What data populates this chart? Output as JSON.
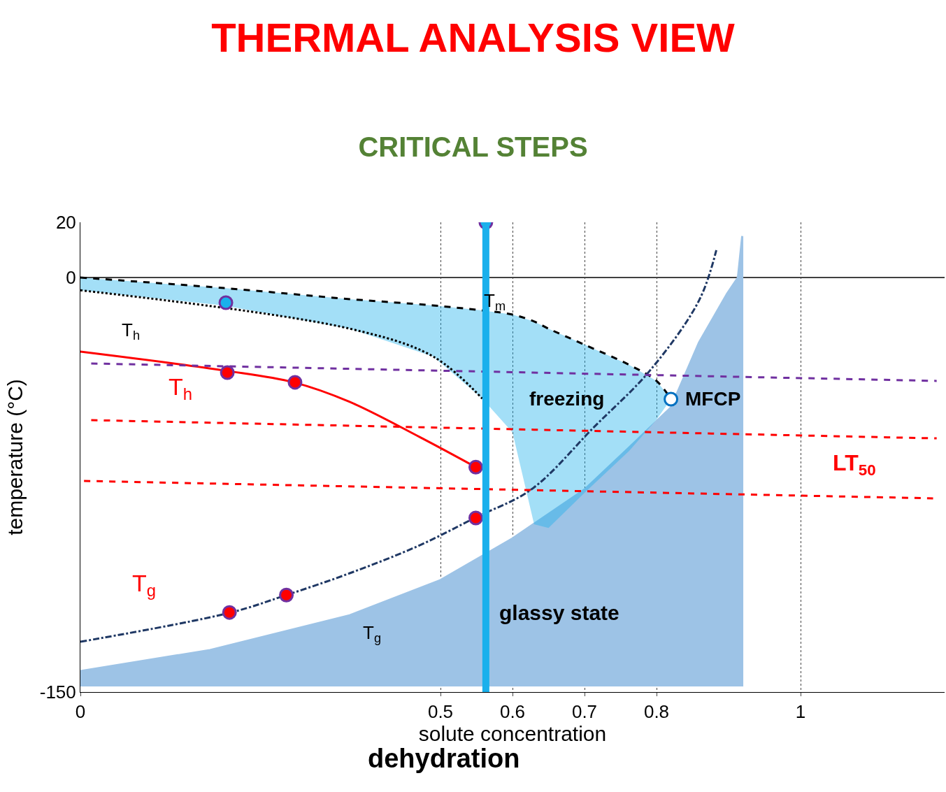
{
  "chart_data": {
    "type": "line",
    "title": "THERMAL ANALYSIS VIEW",
    "subtitle": "CRITICAL STEPS",
    "xlabel": "solute concentration",
    "ylabel": "temperature (°C)",
    "xlim": [
      0,
      1.2
    ],
    "xticks": [
      0,
      0.5,
      0.6,
      0.7,
      0.8,
      1
    ],
    "ylim": [
      -150,
      20
    ],
    "yticks": [
      -150,
      0,
      20
    ],
    "grid": "x",
    "series": [
      {
        "type": "area",
        "color": "#9dc3e6",
        "x": [
          0,
          0,
          0.18,
          0.374,
          0.5,
          0.6,
          0.7,
          0.762,
          0.82,
          0.859,
          0.898,
          0.913,
          0.919,
          0.919
        ],
        "values": [
          -148,
          -142.4,
          -134.8,
          -122.2,
          -109.5,
          -94.4,
          -76.7,
          -61.5,
          -47,
          -23.5,
          -5.8,
          0,
          15,
          -148
        ]
      },
      {
        "color": "#000000",
        "line_style": "dashed",
        "x": [
          0,
          0.199,
          0.374,
          0.49,
          0.558,
          0.6,
          0.63,
          0.65,
          0.7,
          0.762,
          0.8,
          0.82
        ],
        "values": [
          0,
          -3.8,
          -7.8,
          -10.1,
          -11.9,
          -13.4,
          -15.9,
          -18.5,
          -24.3,
          -31.6,
          -37.4,
          -44
        ],
        "upper": [
          0,
          -3.8,
          -7.8,
          -10.1,
          -11.9,
          -13.4,
          -15.9,
          -18.5,
          -24.3,
          -31.6,
          -37.4,
          -44
        ],
        "lower": [
          -4.6,
          -10.1,
          -18.5,
          -28.6,
          -43.8,
          -56,
          -89.3,
          -90.6,
          -77.9,
          -62.7,
          -51.4,
          -44
        ]
      },
      {
        "color": "#000000",
        "line_style": "dotted",
        "x": [
          0,
          0.199,
          0.374,
          0.49,
          0.558
        ],
        "values": [
          -4.6,
          null,
          -18.5,
          -28.6,
          -43.8
        ]
      },
      {
        "color": "#ff0000",
        "line_style": "solid",
        "x": [
          0,
          0.199,
          0.296,
          0.374,
          0.471,
          0.549
        ],
        "values": [
          -26.8,
          -33.6,
          -37.9,
          -45,
          -57.7,
          -68.6
        ]
      },
      {
        "color": "#1f3864",
        "line_style": "dashdot",
        "x": [
          0,
          0.209,
          0.286,
          0.374,
          0.471,
          0.549,
          0.626,
          0.714,
          0.791,
          0.859,
          0.883
        ],
        "values": [
          -131.8,
          -121.2,
          -114.9,
          -107,
          -96.9,
          -86.8,
          -76.7,
          -53.9,
          -33.6,
          -8.3,
          9.9
        ]
      },
      {
        "color": "#7030a0",
        "line_style": "dashed",
        "x": [
          0.015,
          1.189
        ],
        "values": [
          -31.1,
          -37.4
        ]
      },
      {
        "color": "#ff0000",
        "line_style": "dashed",
        "x": [
          0.015,
          1.189
        ],
        "values": [
          -51.6,
          -58.2
        ]
      },
      {
        "color": "#ff0000",
        "line_style": "dashed",
        "x": [
          0.005,
          1.184
        ],
        "values": [
          -73.6,
          -79.9
        ]
      },
      {
        "type": "scatter",
        "marker": "circle",
        "color": "#7030a0",
        "x": [
          0.204,
          0.298,
          0.549,
          0.549,
          0.286,
          0.207,
          0.202,
          0.563
        ],
        "values": [
          -34.4,
          -37.9,
          -68.6,
          -87,
          -114.9,
          -121.2,
          -9.1,
          20
        ],
        "colors": [
          "#ff0000",
          "#ff0000",
          "#ff0000",
          "#ff0000",
          "#ff0000",
          "#ff0000",
          "#1ab0ec",
          "#1ab0ec"
        ]
      },
      {
        "type": "scatter",
        "marker": "circle",
        "color": "#0070c0",
        "x": [
          0.82
        ],
        "values": [
          -44
        ],
        "colors": [
          "#ffffff"
        ]
      }
    ],
    "ref_lines": [
      {
        "axis": "y",
        "value": 0,
        "color": "#000000",
        "line_style": "solid"
      },
      {
        "axis": "x",
        "value": 0.563,
        "color": "#1ab0ec",
        "line_style": "solid"
      }
    ],
    "annotations": [
      "T$_{m}$",
      "T$_{h}$",
      "T$_{h}$",
      "T$_{g}$",
      "T$_{g}$",
      "freezing",
      "MFCP",
      "LT$_{50}$",
      "glassy state",
      "dehydration"
    ]
  }
}
